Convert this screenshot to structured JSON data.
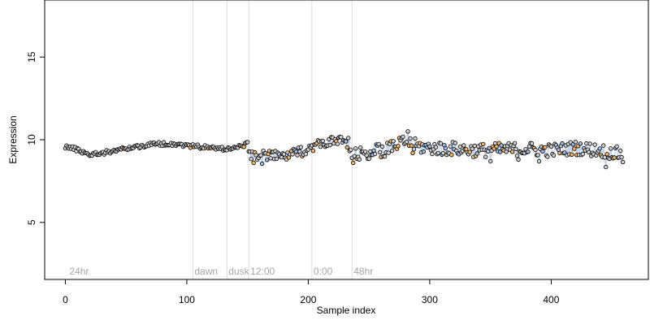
{
  "chart_data": {
    "type": "scatter",
    "title": "",
    "xlabel": "Sample index",
    "ylabel": "Expression",
    "xlim": [
      -17,
      480
    ],
    "ylim": [
      1.55,
      18.45
    ],
    "x_ticks": [
      0,
      100,
      200,
      300,
      400
    ],
    "y_ticks": [
      5,
      10,
      15
    ],
    "grid": false,
    "legend": "none",
    "n_points": 460,
    "colors": {
      "frame": "#000000",
      "point_fill": "#cfcfcf",
      "point_fill_orange": "#f5b360",
      "point_fill_blue": "#9bbbe6",
      "line": "#b9cce6",
      "line_orange": "#f2c27a",
      "marker_line": "#dddddd",
      "marker_text": "#a6a6a6"
    },
    "phase_markers": [
      {
        "x": 2,
        "label": "24hr"
      },
      {
        "x": 105,
        "label": "dawn"
      },
      {
        "x": 133,
        "label": "dusk"
      },
      {
        "x": 151,
        "label": "12:00"
      },
      {
        "x": 203,
        "label": "0:00"
      },
      {
        "x": 236,
        "label": "48hr"
      }
    ],
    "trend_anchors": [
      [
        0,
        9.6
      ],
      [
        10,
        9.4
      ],
      [
        20,
        9.1
      ],
      [
        30,
        9.2
      ],
      [
        45,
        9.4
      ],
      [
        60,
        9.6
      ],
      [
        75,
        9.75
      ],
      [
        90,
        9.75
      ],
      [
        100,
        9.65
      ],
      [
        115,
        9.55
      ],
      [
        130,
        9.45
      ],
      [
        140,
        9.5
      ],
      [
        150,
        9.75
      ],
      [
        153,
        9.1
      ],
      [
        165,
        9.05
      ],
      [
        180,
        9.0
      ],
      [
        195,
        9.3
      ],
      [
        205,
        9.65
      ],
      [
        215,
        9.85
      ],
      [
        230,
        9.95
      ],
      [
        236,
        9.0
      ],
      [
        250,
        9.25
      ],
      [
        265,
        9.4
      ],
      [
        280,
        9.9
      ],
      [
        290,
        9.6
      ],
      [
        300,
        9.5
      ],
      [
        320,
        9.45
      ],
      [
        340,
        9.35
      ],
      [
        360,
        9.4
      ],
      [
        380,
        9.45
      ],
      [
        400,
        9.35
      ],
      [
        420,
        9.5
      ],
      [
        440,
        9.35
      ],
      [
        460,
        9.1
      ]
    ],
    "noise": [
      {
        "from": 0,
        "to": 150,
        "amp": 0.12
      },
      {
        "from": 151,
        "to": 235,
        "amp": 0.3
      },
      {
        "from": 236,
        "to": 460,
        "amp": 0.42
      }
    ],
    "highlights": [
      {
        "x": 233,
        "y": 10.1
      },
      {
        "x": 237,
        "y": 8.6
      },
      {
        "x": 282,
        "y": 10.5
      },
      {
        "x": 286,
        "y": 9.2
      },
      {
        "x": 310,
        "y": 9.1
      },
      {
        "x": 350,
        "y": 8.7
      },
      {
        "x": 373,
        "y": 8.8
      },
      {
        "x": 390,
        "y": 8.7
      },
      {
        "x": 445,
        "y": 8.35
      },
      {
        "x": 459,
        "y": 8.65
      },
      {
        "x": 162,
        "y": 8.55
      },
      {
        "x": 155,
        "y": 8.6
      }
    ]
  }
}
